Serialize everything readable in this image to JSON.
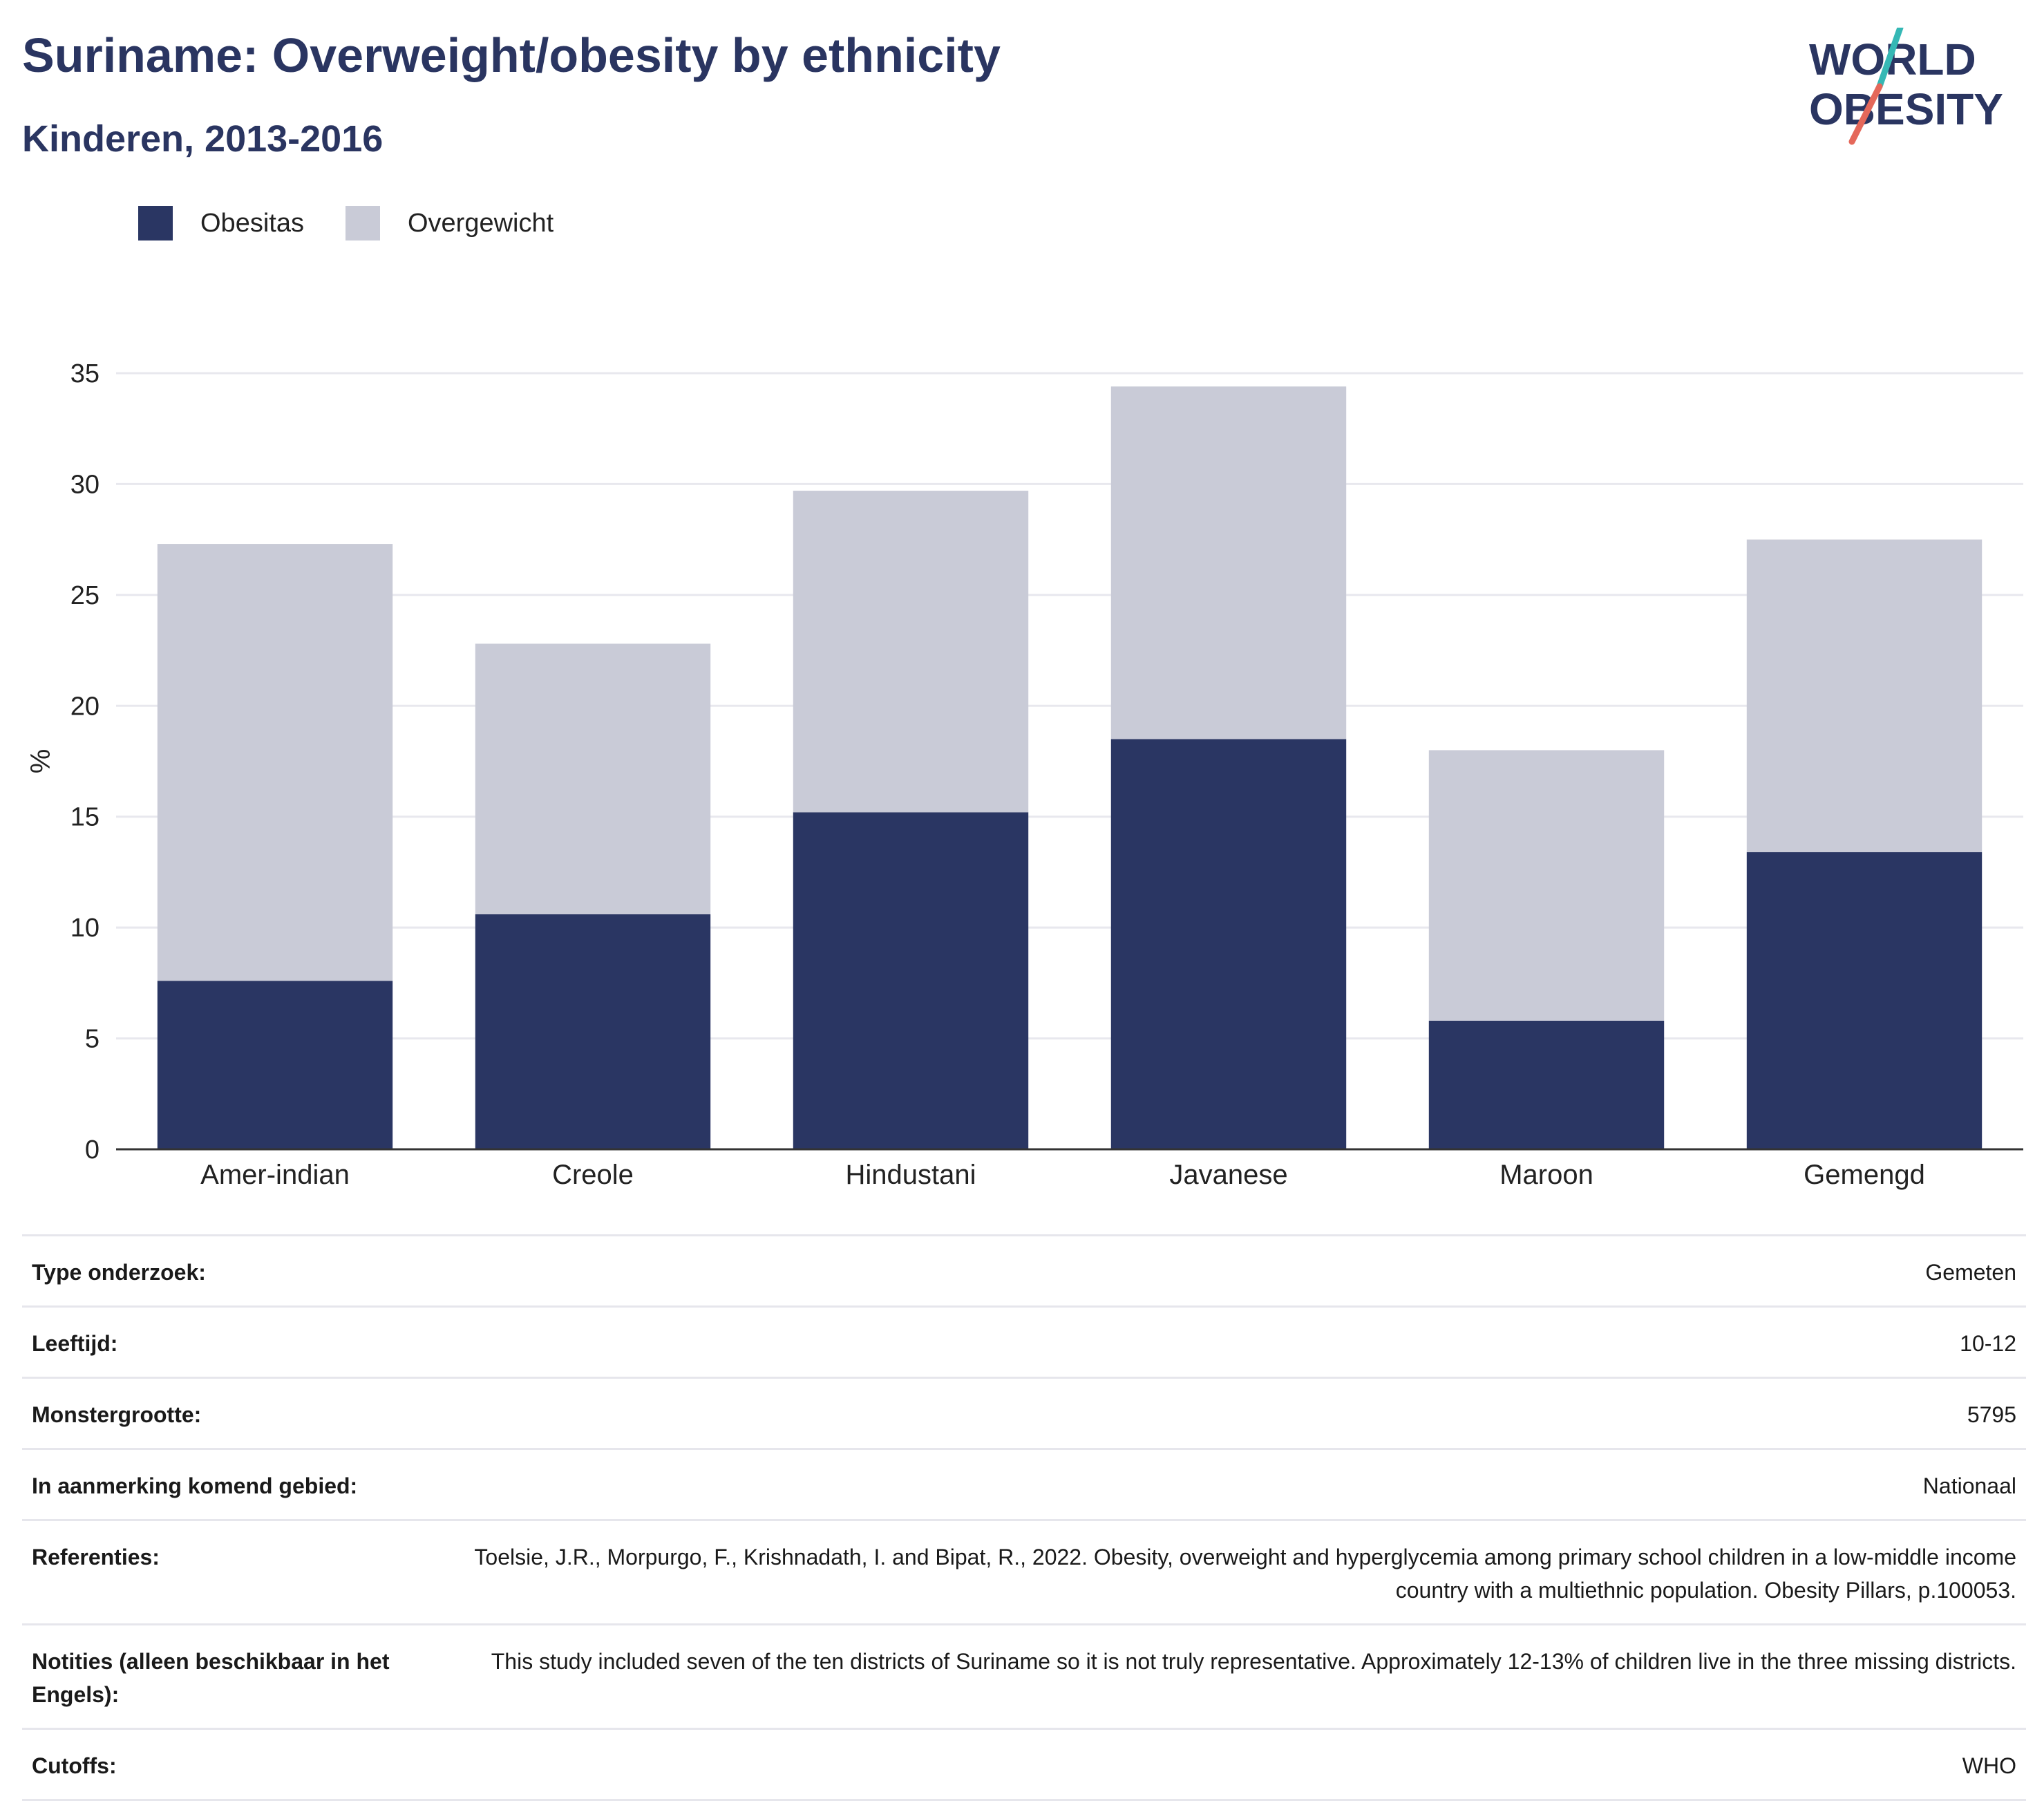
{
  "header": {
    "title": "Suriname: Overweight/obesity by ethnicity",
    "subtitle": "Kinderen, 2013-2016"
  },
  "logo": {
    "line1": "WORLD",
    "line2": "OBESITY"
  },
  "colors": {
    "obesitas": "#2a3663",
    "overgewicht": "#c9cbd7",
    "title": "#2a3561",
    "grid": "#e8e8ee",
    "logo_slash_teal": "#35b8b5",
    "logo_slash_red": "#e5685a"
  },
  "chart_data": {
    "type": "bar",
    "stacked": true,
    "categories": [
      "Amer-indian",
      "Creole",
      "Hindustani",
      "Javanese",
      "Maroon",
      "Gemengd"
    ],
    "series": [
      {
        "name": "Obesitas",
        "values": [
          7.6,
          10.6,
          15.2,
          18.5,
          5.8,
          13.4
        ]
      },
      {
        "name": "Overgewicht",
        "values": [
          19.7,
          12.2,
          14.5,
          15.9,
          12.2,
          14.1
        ]
      }
    ],
    "ylabel": "%",
    "ylim": [
      0,
      35
    ],
    "yticks": [
      0,
      5,
      10,
      15,
      20,
      25,
      30,
      35
    ],
    "grid": true,
    "legend_position": "top-left"
  },
  "info_table": [
    {
      "label": "Type onderzoek:",
      "value": "Gemeten"
    },
    {
      "label": "Leeftijd:",
      "value": "10-12"
    },
    {
      "label": "Monstergrootte:",
      "value": "5795"
    },
    {
      "label": "In aanmerking komend gebied:",
      "value": "Nationaal"
    },
    {
      "label": "Referenties:",
      "value": "Toelsie, J.R., Morpurgo, F., Krishnadath, I. and Bipat, R., 2022. Obesity, overweight and hyperglycemia among primary school children in a low-middle income country with a multiethnic population. Obesity Pillars, p.100053."
    },
    {
      "label": "Notities (alleen beschikbaar in het Engels):",
      "value": "This study included seven of the ten districts of Suriname so it is not truly representative. Approximately 12-13% of children live in the three missing districts."
    },
    {
      "label": "Cutoffs:",
      "value": "WHO"
    }
  ]
}
